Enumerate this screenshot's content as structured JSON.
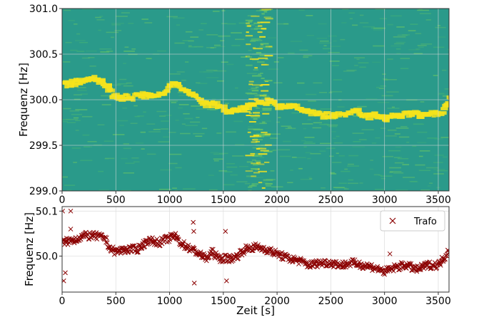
{
  "chart_data": [
    {
      "type": "heatmap",
      "title": "",
      "xlabel": "",
      "ylabel": "Frequenz [Hz]",
      "xlim": [
        0,
        3600
      ],
      "ylim": [
        299.0,
        301.0
      ],
      "xticks": [
        "0",
        "500",
        "1000",
        "1500",
        "2000",
        "2500",
        "3000",
        "3500"
      ],
      "yticks": [
        "299.0",
        "299.5",
        "300.0",
        "300.5",
        "301.0"
      ],
      "grid": true,
      "colors": {
        "background": "#2a9a8a",
        "mid": "#5fbf6a",
        "high": "#f5e31c"
      },
      "ridge": {
        "x": [
          0,
          150,
          250,
          300,
          350,
          450,
          500,
          650,
          700,
          900,
          1000,
          1100,
          1200,
          1300,
          1400,
          1500,
          1600,
          1700,
          1800,
          1900,
          2000,
          2100,
          2200,
          2300,
          2400,
          2500,
          2600,
          2700,
          2800,
          2900,
          3000,
          3100,
          3200,
          3300,
          3400,
          3500,
          3550,
          3600
        ],
        "y": [
          300.17,
          300.2,
          300.24,
          300.22,
          300.2,
          300.05,
          300.02,
          300.03,
          300.05,
          300.05,
          300.17,
          300.12,
          300.05,
          299.95,
          299.95,
          299.88,
          299.87,
          299.92,
          299.98,
          299.98,
          299.93,
          299.93,
          299.9,
          299.86,
          299.83,
          299.82,
          299.84,
          299.88,
          299.82,
          299.83,
          299.78,
          299.84,
          299.84,
          299.84,
          299.84,
          299.84,
          299.96,
          300.02
        ]
      }
    },
    {
      "type": "scatter",
      "title": "",
      "xlabel": "Zeit [s]",
      "ylabel": "Frequenz [Hz]",
      "xlim": [
        0,
        3600
      ],
      "ylim": [
        49.92,
        50.11
      ],
      "xticks": [
        "0",
        "500",
        "1000",
        "1500",
        "2000",
        "2500",
        "3000",
        "3500"
      ],
      "yticks": [
        "50.0",
        "50.1"
      ],
      "grid": true,
      "legend": {
        "label": "Trafo",
        "position": "top-right"
      },
      "series": [
        {
          "name": "Trafo",
          "color": "#8b0000",
          "x": [
            0,
            100,
            200,
            300,
            400,
            450,
            500,
            600,
            700,
            800,
            900,
            1000,
            1050,
            1100,
            1200,
            1250,
            1300,
            1350,
            1400,
            1450,
            1500,
            1600,
            1700,
            1800,
            1900,
            2000,
            2100,
            2200,
            2300,
            2400,
            2500,
            2600,
            2700,
            2800,
            2900,
            3000,
            3100,
            3200,
            3300,
            3400,
            3500,
            3550,
            3600
          ],
          "y": [
            50.03,
            50.035,
            50.045,
            50.045,
            50.04,
            50.015,
            50.01,
            50.015,
            50.015,
            50.035,
            50.03,
            50.04,
            50.045,
            50.03,
            50.015,
            50.01,
            50.0,
            49.995,
            50.01,
            49.995,
            49.995,
            49.995,
            50.015,
            50.02,
            50.015,
            50.005,
            49.995,
            49.99,
            49.98,
            49.985,
            49.985,
            49.98,
            49.985,
            49.98,
            49.975,
            49.965,
            49.975,
            49.98,
            49.97,
            49.98,
            49.98,
            49.995,
            50.015
          ],
          "outliers": {
            "x": [
              5,
              15,
              30,
              80,
              80,
              1220,
              1225,
              1230,
              1520,
              1530,
              3050
            ],
            "y": [
              50.1,
              49.945,
              49.963,
              50.1,
              50.06,
              50.075,
              50.055,
              49.94,
              50.055,
              49.945,
              50.005
            ]
          }
        }
      ]
    }
  ]
}
